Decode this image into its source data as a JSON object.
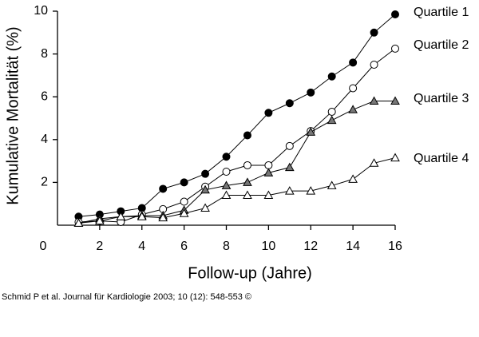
{
  "chart_data": {
    "type": "line",
    "y_label": "Kumulative Mortalität (%)",
    "x_label": "Follow-up (Jahre)",
    "caption": "Schmid P et al. Journal für Kardiologie 2003; 10 (12): 548-553 ©",
    "x": [
      1,
      2,
      3,
      4,
      5,
      6,
      7,
      8,
      9,
      10,
      11,
      12,
      13,
      14,
      15,
      16
    ],
    "series": [
      {
        "name": "Quartile 1",
        "color": "#000000",
        "marker": "circle",
        "marker_fill": "#000000",
        "values": [
          0.4,
          0.5,
          0.65,
          0.8,
          1.7,
          2.0,
          2.4,
          3.2,
          4.2,
          5.25,
          5.7,
          6.2,
          6.95,
          7.6,
          9.0,
          9.85
        ]
      },
      {
        "name": "Quartile 2",
        "color": "#000000",
        "marker": "circle",
        "marker_fill": "#ffffff",
        "values": [
          0.15,
          0.2,
          0.15,
          0.5,
          0.75,
          1.1,
          1.8,
          2.5,
          2.8,
          2.8,
          3.7,
          4.4,
          5.3,
          6.4,
          7.5,
          8.25
        ]
      },
      {
        "name": "Quartile 3",
        "color": "#000000",
        "marker": "triangle",
        "marker_fill": "#777777",
        "values": [
          0.1,
          0.3,
          0.4,
          0.45,
          0.45,
          0.7,
          1.65,
          1.85,
          2.0,
          2.45,
          2.7,
          4.35,
          4.9,
          5.4,
          5.8,
          5.8
        ]
      },
      {
        "name": "Quartile 4",
        "color": "#000000",
        "marker": "triangle",
        "marker_fill": "#ffffff",
        "values": [
          0.1,
          0.2,
          0.4,
          0.4,
          0.35,
          0.55,
          0.8,
          1.4,
          1.4,
          1.4,
          1.6,
          1.6,
          1.85,
          2.15,
          2.9,
          3.15
        ]
      }
    ],
    "xlim": [
      0,
      16
    ],
    "xticks": [
      0,
      2,
      4,
      6,
      8,
      10,
      12,
      14,
      16
    ],
    "ylim": [
      0,
      10
    ],
    "yticks": [
      2,
      4,
      6,
      8,
      10
    ],
    "grid": false
  }
}
